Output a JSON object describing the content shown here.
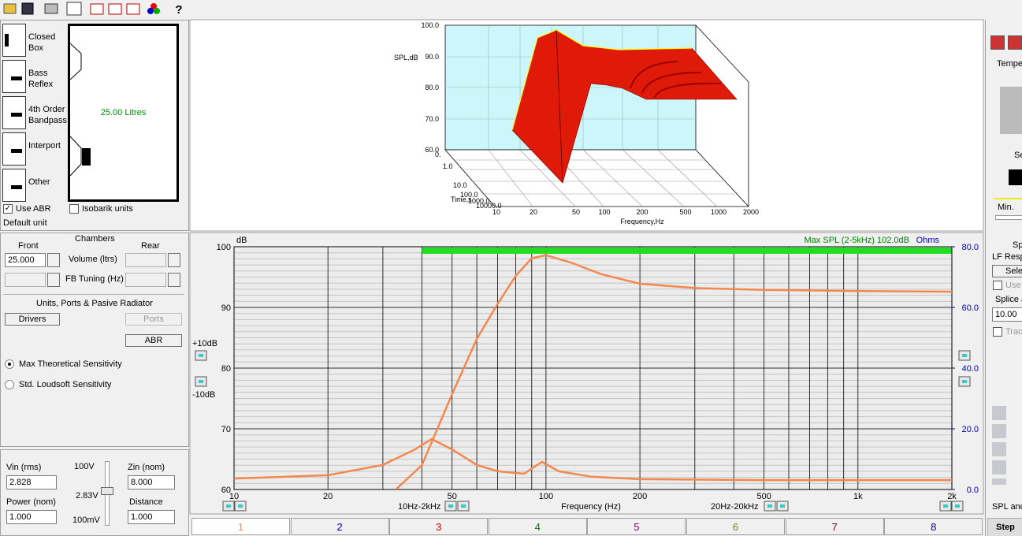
{
  "enclosures": [
    "Closed Box",
    "Bass Reflex",
    "4th Order Bandpass",
    "Interport",
    "Other"
  ],
  "preview": {
    "volume": "25.00 Litres"
  },
  "options": {
    "use_abr": "Use ABR",
    "isobarik": "Isobarik units",
    "default_unit": "Default unit"
  },
  "chambers": {
    "title": "Chambers",
    "front": "Front",
    "rear": "Rear",
    "front_volume": "25.000",
    "volume_label": "Volume (ltrs)",
    "fb_label": "FB Tuning (Hz)"
  },
  "units": {
    "title": "Units, Ports & Pasive Radiator",
    "drivers": "Drivers",
    "ports": "Ports",
    "abr": "ABR"
  },
  "sensitivity": [
    "Max Theoretical Sensitivity",
    "Std. Loudsoft Sensitivity"
  ],
  "signal": {
    "vin_label": "Vin (rms)",
    "vin": "2.828",
    "power_label": "Power (nom)",
    "power": "1.000",
    "v_max": "100V",
    "v_set": "2.83V",
    "v_min": "100mV",
    "zin_label": "Zin (nom)",
    "zin": "8.000",
    "distance_label": "Distance",
    "distance": "1.000"
  },
  "waterfall": {
    "z_label": "SPL,dB",
    "z_ticks": [
      "100.0",
      "90.0",
      "80.0",
      "70.0",
      "60.0"
    ],
    "time_label": "Time,s",
    "time_ticks": [
      "0.",
      "1.0",
      "10.0",
      "100.0",
      "1000.0",
      "10000.0"
    ],
    "x_label": "Frequency,Hz",
    "x_ticks": [
      "10",
      "20",
      "50",
      "100",
      "200",
      "500",
      "1000",
      "2000"
    ]
  },
  "response_plot": {
    "y_unit": "dB",
    "y2_unit": "Ohms",
    "max_spl": "Max SPL (2-5kHz) 102.0dB",
    "x_label": "Frequency (Hz)",
    "range_left": "10Hz-2kHz",
    "range_right": "20Hz-20kHz",
    "gain_up": "+10dB",
    "gain_down": "-10dB",
    "xscale": "log",
    "xlim": [
      10,
      2000
    ],
    "xticks": [
      10,
      20,
      50,
      100,
      200,
      500,
      {
        "value": 1000,
        "label": "1k"
      },
      {
        "value": 2000,
        "label": "2k"
      }
    ],
    "xgrid": [
      30,
      40,
      60,
      70,
      80,
      90,
      300,
      400,
      600,
      700,
      800,
      900
    ],
    "ylim": [
      60,
      100
    ],
    "yticks": [
      60,
      70,
      80,
      90,
      100
    ],
    "minor_grid_step": 1,
    "y2lim": [
      0,
      80
    ],
    "y2ticks": [
      {
        "value": 0,
        "label": "0.0"
      },
      {
        "value": 20,
        "label": "20.0"
      },
      {
        "value": 40,
        "label": "40.0"
      },
      {
        "value": 60,
        "label": "60.0"
      },
      {
        "value": 80,
        "label": "80.0"
      }
    ],
    "max_spl_band": {
      "x": [
        40,
        2000
      ],
      "color": "#22dd22"
    },
    "series": [
      {
        "color": "#f4884c",
        "x": [
          33,
          40,
          50,
          60,
          70,
          80,
          90,
          100,
          120,
          150,
          200,
          300,
          500,
          1000,
          2000
        ],
        "values": [
          60,
          64,
          75.7,
          84.8,
          90.6,
          95.2,
          98.1,
          98.6,
          97.4,
          95.5,
          93.9,
          93.2,
          92.9,
          92.7,
          92.6
        ]
      },
      {
        "color": "#f4884c",
        "axis": "y2",
        "x": [
          10,
          20,
          30,
          38,
          43,
          50,
          60,
          70,
          85,
          97,
          110,
          140,
          200,
          500,
          2000
        ],
        "values": [
          3.6,
          4.7,
          8.1,
          13.2,
          16.6,
          13.2,
          8.1,
          6.0,
          5.2,
          9.1,
          6.0,
          4.2,
          3.4,
          3.1,
          3.1
        ]
      }
    ]
  },
  "tabs": [
    {
      "label": "1",
      "color": "#f4884c"
    },
    {
      "label": "2",
      "color": "#0000c0"
    },
    {
      "label": "3",
      "color": "#c00000"
    },
    {
      "label": "4",
      "color": "#008000"
    },
    {
      "label": "5",
      "color": "#800080"
    },
    {
      "label": "6",
      "color": "#808000"
    },
    {
      "label": "7",
      "color": "#800000"
    },
    {
      "label": "8",
      "color": "#000080"
    }
  ],
  "right_panel": [
    "Tempe",
    "Sele",
    "Min.",
    "Sp",
    "LF Resp",
    "Sele",
    "Use",
    "Splice a",
    "10.00",
    "Trac",
    "SPL and",
    "Step"
  ]
}
